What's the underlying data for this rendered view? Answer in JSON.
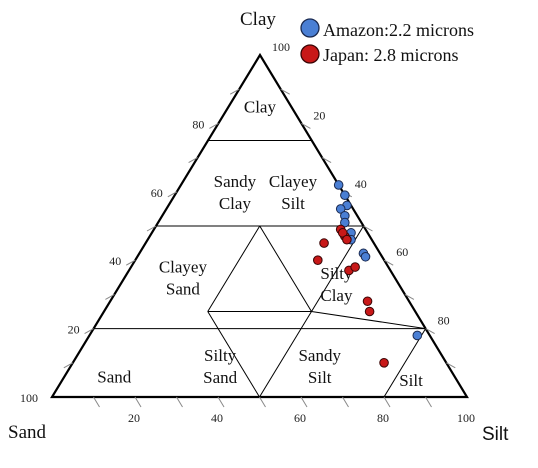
{
  "chart_data": {
    "type": "ternary",
    "axes": {
      "top": "Clay",
      "left": "Sand",
      "right": "Silt"
    },
    "ticks": {
      "clay": [
        "20",
        "40",
        "60",
        "80",
        "100"
      ],
      "silt_right": [
        "20",
        "40",
        "60",
        "80",
        "100"
      ],
      "sand_bottom": [
        "20",
        "40",
        "60",
        "80",
        "100"
      ]
    },
    "regions": [
      {
        "id": "clay",
        "lines": [
          "Clay"
        ]
      },
      {
        "id": "sandy-clay",
        "lines": [
          "Sandy",
          "Clay"
        ]
      },
      {
        "id": "clayey-silt",
        "lines": [
          "Clayey",
          "Silt"
        ]
      },
      {
        "id": "clayey-sand",
        "lines": [
          "Clayey",
          "Sand"
        ]
      },
      {
        "id": "silty-clay",
        "lines": [
          "Silty",
          "Clay"
        ]
      },
      {
        "id": "sand",
        "lines": [
          "Sand"
        ]
      },
      {
        "id": "silty-sand",
        "lines": [
          "Silty",
          "Sand"
        ]
      },
      {
        "id": "sandy-silt",
        "lines": [
          "Sandy",
          "Silt"
        ]
      },
      {
        "id": "silt",
        "lines": [
          "Silt"
        ]
      }
    ],
    "legend": [
      {
        "label": "Amazon:",
        "value": "2.2 microns",
        "color": "#4a7fd4"
      },
      {
        "label": "Japan:",
        "value": "2.8 microns",
        "color": "#c81818"
      }
    ],
    "series": [
      {
        "name": "Amazon",
        "color": "#4a7fd4",
        "points": [
          {
            "clay": 62,
            "silt": 38
          },
          {
            "clay": 59,
            "silt": 41
          },
          {
            "clay": 56,
            "silt": 43
          },
          {
            "clay": 55,
            "silt": 42
          },
          {
            "clay": 53,
            "silt": 44
          },
          {
            "clay": 51,
            "silt": 45
          },
          {
            "clay": 48,
            "silt": 48
          },
          {
            "clay": 46,
            "silt": 49
          },
          {
            "clay": 42,
            "silt": 54
          },
          {
            "clay": 41,
            "silt": 55
          },
          {
            "clay": 18,
            "silt": 79
          }
        ]
      },
      {
        "name": "Japan",
        "color": "#c81818",
        "points": [
          {
            "clay": 49,
            "silt": 45
          },
          {
            "clay": 47,
            "silt": 47
          },
          {
            "clay": 48,
            "silt": 46
          },
          {
            "clay": 46,
            "silt": 48
          },
          {
            "clay": 45,
            "silt": 43
          },
          {
            "clay": 40,
            "silt": 44
          },
          {
            "clay": 37,
            "silt": 53
          },
          {
            "clay": 38,
            "silt": 54
          },
          {
            "clay": 28,
            "silt": 62
          },
          {
            "clay": 25,
            "silt": 64
          },
          {
            "clay": 10,
            "silt": 75
          }
        ]
      }
    ]
  }
}
